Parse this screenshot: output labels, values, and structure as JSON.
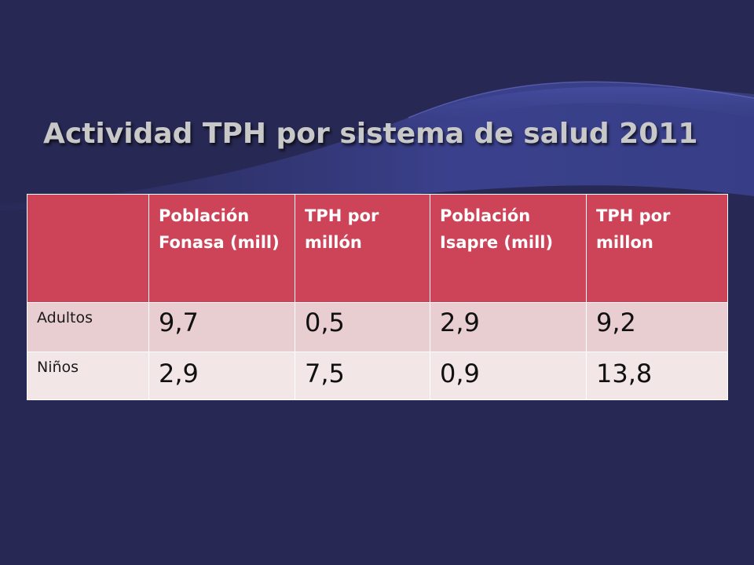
{
  "slide": {
    "title": "Actividad TPH por sistema de salud 2011"
  },
  "table": {
    "headers": [
      "",
      "Población Fonasa (mill)",
      "TPH  por millón",
      "Población Isapre (mill)",
      "TPH por millon"
    ],
    "rows": [
      {
        "label": "Adultos",
        "values": [
          "9,7",
          "0,5",
          "2,9",
          "9,2"
        ]
      },
      {
        "label": "Niños",
        "values": [
          "2,9",
          "7,5",
          "0,9",
          "13,8"
        ]
      }
    ]
  },
  "colors": {
    "background": "#272853",
    "header_fill": "#cd4459",
    "row1_fill": "#e8cdd1",
    "row2_fill": "#f3e6e7"
  }
}
